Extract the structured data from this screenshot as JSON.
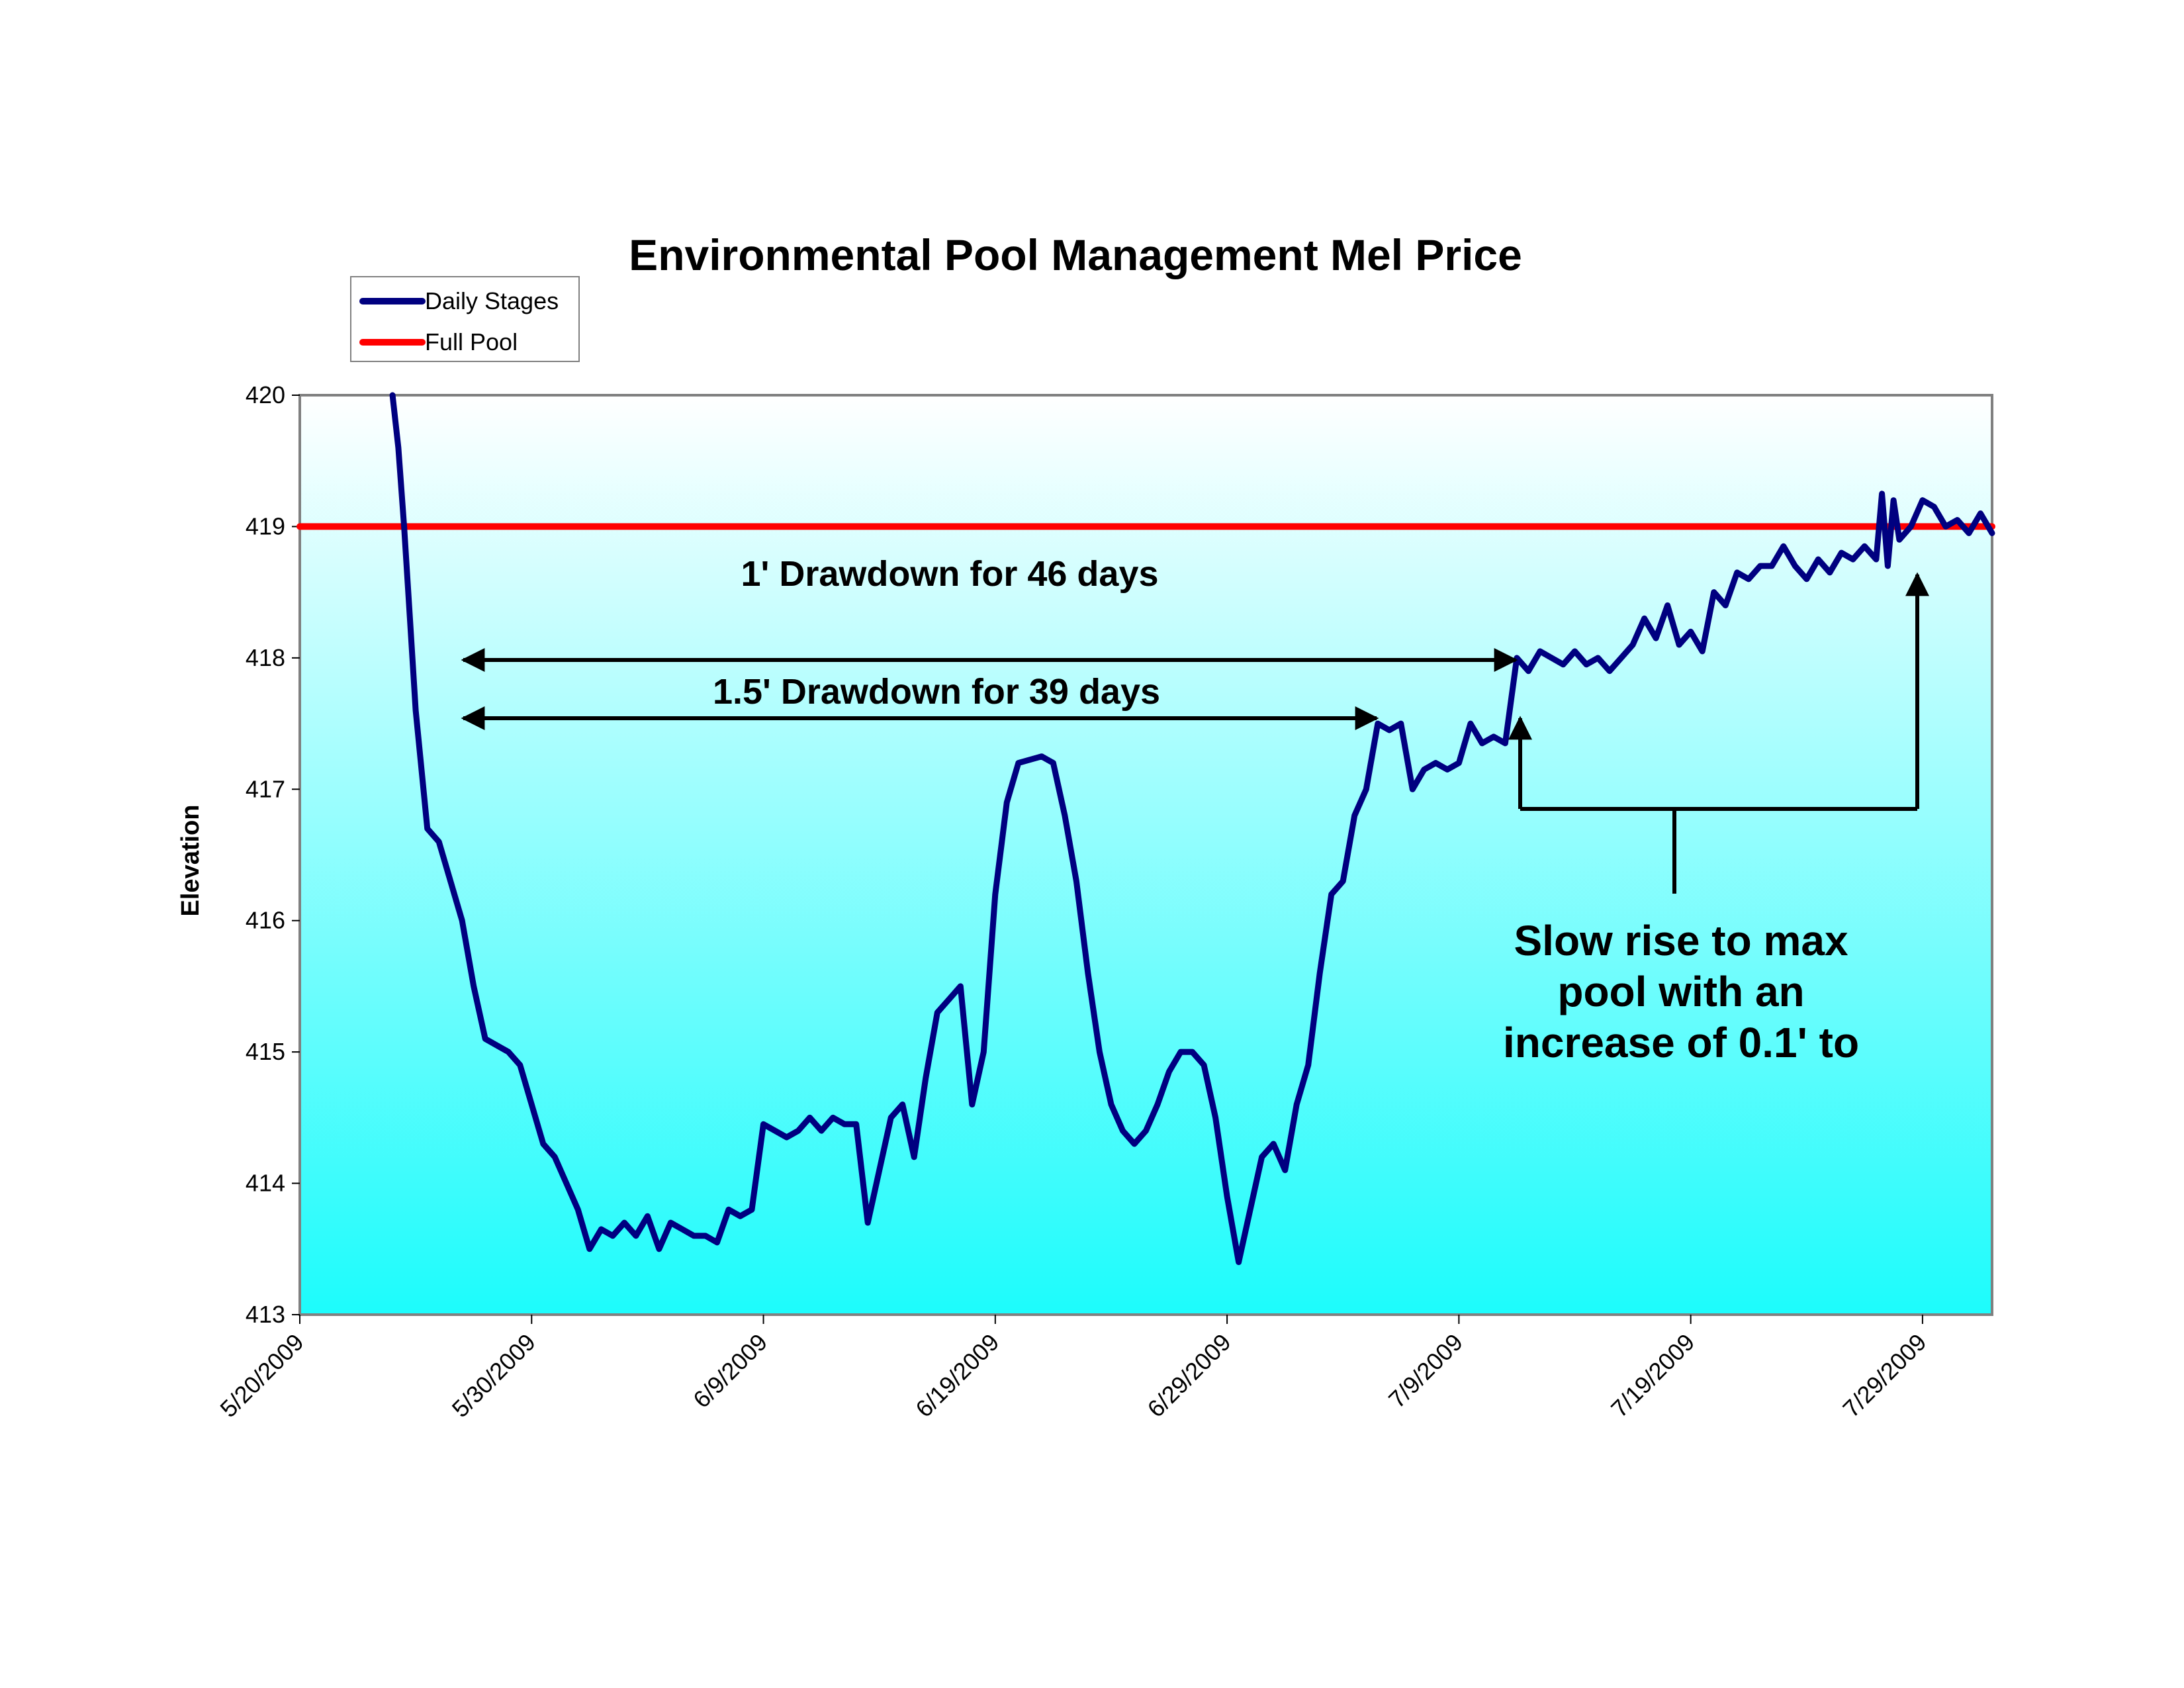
{
  "chart_data": {
    "type": "line",
    "title": "Environmental Pool Management Mel Price",
    "xlabel": "",
    "ylabel": "Elevation",
    "x_axis_type": "date",
    "xlim": [
      "5/20/2009",
      "8/1/2009"
    ],
    "ylim": [
      413,
      420
    ],
    "x_ticks": [
      "5/20/2009",
      "5/30/2009",
      "6/9/2009",
      "6/19/2009",
      "6/29/2009",
      "7/9/2009",
      "7/19/2009",
      "7/29/2009"
    ],
    "y_ticks": [
      413,
      414,
      415,
      416,
      417,
      418,
      419,
      420
    ],
    "grid": false,
    "legend_position": "top-left",
    "colors": {
      "daily_stages": "#000080",
      "full_pool": "#ff0000",
      "plot_bg_top": "#ffffff",
      "plot_bg_bottom": "#1cfcfc",
      "plot_border": "#808080"
    },
    "series": [
      {
        "name": "Daily Stages",
        "points": [
          [
            "5/24/2009",
            420.0
          ],
          [
            "5/24/2009 06:00",
            419.6
          ],
          [
            "5/24/2009 12:00",
            419.0
          ],
          [
            "5/24/2009 18:00",
            418.3
          ],
          [
            "5/25/2009",
            417.6
          ],
          [
            "5/25/2009 12:00",
            416.7
          ],
          [
            "5/26/2009",
            416.6
          ],
          [
            "5/26/2009 12:00",
            416.3
          ],
          [
            "5/27/2009",
            416.0
          ],
          [
            "5/27/2009 12:00",
            415.5
          ],
          [
            "5/28/2009",
            415.1
          ],
          [
            "5/29/2009",
            415.0
          ],
          [
            "5/29/2009 12:00",
            414.9
          ],
          [
            "5/30/2009",
            414.6
          ],
          [
            "5/30/2009 12:00",
            414.3
          ],
          [
            "5/31/2009",
            414.2
          ],
          [
            "5/31/2009 12:00",
            414.0
          ],
          [
            "6/1/2009",
            413.8
          ],
          [
            "6/1/2009 12:00",
            413.5
          ],
          [
            "6/2/2009",
            413.65
          ],
          [
            "6/2/2009 12:00",
            413.6
          ],
          [
            "6/3/2009",
            413.7
          ],
          [
            "6/3/2009 12:00",
            413.6
          ],
          [
            "6/4/2009",
            413.75
          ],
          [
            "6/4/2009 12:00",
            413.5
          ],
          [
            "6/5/2009",
            413.7
          ],
          [
            "6/5/2009 12:00",
            413.65
          ],
          [
            "6/6/2009",
            413.6
          ],
          [
            "6/6/2009 12:00",
            413.6
          ],
          [
            "6/7/2009",
            413.55
          ],
          [
            "6/7/2009 12:00",
            413.8
          ],
          [
            "6/8/2009",
            413.75
          ],
          [
            "6/8/2009 12:00",
            413.8
          ],
          [
            "6/9/2009",
            414.45
          ],
          [
            "6/9/2009 12:00",
            414.4
          ],
          [
            "6/10/2009",
            414.35
          ],
          [
            "6/10/2009 12:00",
            414.4
          ],
          [
            "6/11/2009",
            414.5
          ],
          [
            "6/11/2009 12:00",
            414.4
          ],
          [
            "6/12/2009",
            414.5
          ],
          [
            "6/12/2009 12:00",
            414.45
          ],
          [
            "6/13/2009",
            414.45
          ],
          [
            "6/13/2009 12:00",
            413.7
          ],
          [
            "6/14/2009",
            414.1
          ],
          [
            "6/14/2009 12:00",
            414.5
          ],
          [
            "6/15/2009",
            414.6
          ],
          [
            "6/15/2009 12:00",
            414.2
          ],
          [
            "6/16/2009",
            414.8
          ],
          [
            "6/16/2009 12:00",
            415.3
          ],
          [
            "6/17/2009",
            415.4
          ],
          [
            "6/17/2009 12:00",
            415.5
          ],
          [
            "6/18/2009",
            414.6
          ],
          [
            "6/18/2009 12:00",
            415.0
          ],
          [
            "6/19/2009",
            416.2
          ],
          [
            "6/19/2009 12:00",
            416.9
          ],
          [
            "6/20/2009",
            417.2
          ],
          [
            "6/21/2009",
            417.25
          ],
          [
            "6/21/2009 12:00",
            417.2
          ],
          [
            "6/22/2009",
            416.8
          ],
          [
            "6/22/2009 12:00",
            416.3
          ],
          [
            "6/23/2009",
            415.6
          ],
          [
            "6/23/2009 12:00",
            415.0
          ],
          [
            "6/24/2009",
            414.6
          ],
          [
            "6/24/2009 12:00",
            414.4
          ],
          [
            "6/25/2009",
            414.3
          ],
          [
            "6/25/2009 12:00",
            414.4
          ],
          [
            "6/26/2009",
            414.6
          ],
          [
            "6/26/2009 12:00",
            414.85
          ],
          [
            "6/27/2009",
            415.0
          ],
          [
            "6/27/2009 12:00",
            415.0
          ],
          [
            "6/28/2009",
            414.9
          ],
          [
            "6/28/2009 12:00",
            414.5
          ],
          [
            "6/29/2009",
            413.9
          ],
          [
            "6/29/2009 12:00",
            413.4
          ],
          [
            "6/30/2009",
            413.8
          ],
          [
            "6/30/2009 12:00",
            414.2
          ],
          [
            "7/1/2009",
            414.3
          ],
          [
            "7/1/2009 12:00",
            414.1
          ],
          [
            "7/2/2009",
            414.6
          ],
          [
            "7/2/2009 12:00",
            414.9
          ],
          [
            "7/3/2009",
            415.6
          ],
          [
            "7/3/2009 12:00",
            416.2
          ],
          [
            "7/4/2009",
            416.3
          ],
          [
            "7/4/2009 12:00",
            416.8
          ],
          [
            "7/5/2009",
            417.0
          ],
          [
            "7/5/2009 12:00",
            417.5
          ],
          [
            "7/6/2009",
            417.45
          ],
          [
            "7/6/2009 12:00",
            417.5
          ],
          [
            "7/7/2009",
            417.0
          ],
          [
            "7/7/2009 12:00",
            417.15
          ],
          [
            "7/8/2009",
            417.2
          ],
          [
            "7/8/2009 12:00",
            417.15
          ],
          [
            "7/9/2009",
            417.2
          ],
          [
            "7/9/2009 12:00",
            417.5
          ],
          [
            "7/10/2009",
            417.35
          ],
          [
            "7/10/2009 12:00",
            417.4
          ],
          [
            "7/11/2009",
            417.35
          ],
          [
            "7/11/2009 12:00",
            418.0
          ],
          [
            "7/12/2009",
            417.9
          ],
          [
            "7/12/2009 12:00",
            418.05
          ],
          [
            "7/13/2009",
            418.0
          ],
          [
            "7/13/2009 12:00",
            417.95
          ],
          [
            "7/14/2009",
            418.05
          ],
          [
            "7/14/2009 12:00",
            417.95
          ],
          [
            "7/15/2009",
            418.0
          ],
          [
            "7/15/2009 12:00",
            417.9
          ],
          [
            "7/16/2009",
            418.0
          ],
          [
            "7/16/2009 12:00",
            418.1
          ],
          [
            "7/17/2009",
            418.3
          ],
          [
            "7/17/2009 12:00",
            418.15
          ],
          [
            "7/18/2009",
            418.4
          ],
          [
            "7/18/2009 12:00",
            418.1
          ],
          [
            "7/19/2009",
            418.2
          ],
          [
            "7/19/2009 12:00",
            418.05
          ],
          [
            "7/20/2009",
            418.5
          ],
          [
            "7/20/2009 12:00",
            418.4
          ],
          [
            "7/21/2009",
            418.65
          ],
          [
            "7/21/2009 12:00",
            418.6
          ],
          [
            "7/22/2009",
            418.7
          ],
          [
            "7/22/2009 12:00",
            418.7
          ],
          [
            "7/23/2009",
            418.85
          ],
          [
            "7/23/2009 12:00",
            418.7
          ],
          [
            "7/24/2009",
            418.6
          ],
          [
            "7/24/2009 12:00",
            418.75
          ],
          [
            "7/25/2009",
            418.65
          ],
          [
            "7/25/2009 12:00",
            418.8
          ],
          [
            "7/26/2009",
            418.75
          ],
          [
            "7/26/2009 12:00",
            418.85
          ],
          [
            "7/27/2009",
            418.75
          ],
          [
            "7/27/2009 06:00",
            419.25
          ],
          [
            "7/27/2009 12:00",
            418.7
          ],
          [
            "7/27/2009 18:00",
            419.2
          ],
          [
            "7/28/2009",
            418.9
          ],
          [
            "7/28/2009 12:00",
            419.0
          ],
          [
            "7/29/2009",
            419.2
          ],
          [
            "7/29/2009 12:00",
            419.15
          ],
          [
            "7/30/2009",
            419.0
          ],
          [
            "7/30/2009 12:00",
            419.05
          ],
          [
            "7/31/2009",
            418.95
          ],
          [
            "7/31/2009 12:00",
            419.1
          ],
          [
            "8/1/2009",
            418.95
          ]
        ]
      },
      {
        "name": "Full Pool",
        "points": [
          [
            "5/20/2009",
            419.0
          ],
          [
            "8/1/2009",
            419.0
          ]
        ]
      }
    ],
    "annotations": [
      {
        "text": "1' Drawdown for 46 days"
      },
      {
        "text": "1.5' Drawdown for 39 days"
      },
      {
        "lines": [
          "Slow rise to max",
          "pool with an",
          "increase of 0.1' to"
        ]
      }
    ]
  }
}
